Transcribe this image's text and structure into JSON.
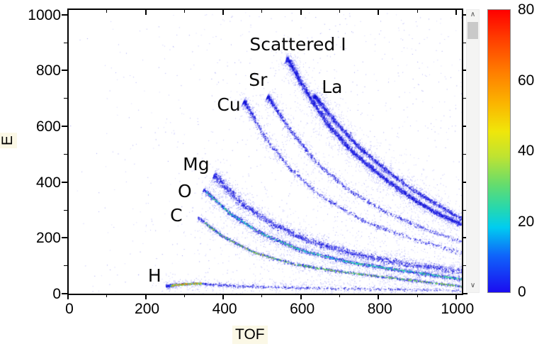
{
  "chart_data": {
    "type": "scatter",
    "title": "",
    "xlabel": "TOF",
    "ylabel": "E",
    "xlim": [
      0,
      1015
    ],
    "ylim": [
      0,
      1020
    ],
    "grid": false,
    "x_major_ticks": [
      0,
      200,
      400,
      600,
      800,
      1000
    ],
    "x_minor_ticks": [
      100,
      300,
      500,
      700,
      900
    ],
    "y_major_ticks": [
      0,
      200,
      400,
      600,
      800,
      1000
    ],
    "y_minor_ticks": [
      100,
      300,
      500,
      700,
      900
    ],
    "axis_color": "#000000",
    "annotations": [
      {
        "label": "Scattered I",
        "t": 468,
        "e": 926
      },
      {
        "label": "Sr",
        "t": 466,
        "e": 799
      },
      {
        "label": "Cu",
        "t": 384,
        "e": 710
      },
      {
        "label": "La",
        "t": 654,
        "e": 773
      },
      {
        "label": "Mg",
        "t": 296,
        "e": 496
      },
      {
        "label": "O",
        "t": 283,
        "e": 399
      },
      {
        "label": "C",
        "t": 263,
        "e": 313
      },
      {
        "label": "H",
        "t": 206,
        "e": 97
      }
    ],
    "series": [
      {
        "name": "H",
        "anchors": [
          [
            255,
            28
          ],
          [
            285,
            34
          ],
          [
            330,
            38
          ],
          [
            420,
            29
          ],
          [
            560,
            23
          ],
          [
            760,
            18
          ],
          [
            1015,
            13
          ]
        ],
        "t_range": [
          252,
          1015
        ],
        "bias": 2.0,
        "ridge_n": 700,
        "ridge_sigma": 1.0,
        "diffuse_n": 420,
        "diffuse_sigma": 2.8,
        "spray_n": 160,
        "spray_sigma": 9,
        "core": {
          "n": 270,
          "sigma": 0.6,
          "t_range": [
            262,
            345
          ],
          "colors": [
            "#5ad23c",
            "#d2dc1e",
            "#f0a028",
            "#e65a14",
            "#28c8c8"
          ]
        }
      },
      {
        "name": "C",
        "anchors": [
          [
            336,
            272
          ],
          [
            400,
            205
          ],
          [
            480,
            148
          ],
          [
            580,
            107
          ],
          [
            700,
            80
          ],
          [
            850,
            55
          ],
          [
            1015,
            27
          ]
        ],
        "t_range": [
          334,
          1015
        ],
        "bias": 1.2,
        "ridge_n": 1000,
        "ridge_sigma": 1.0,
        "diffuse_n": 620,
        "diffuse_sigma": 3.0,
        "spray_n": 260,
        "spray_sigma": 12,
        "core": {
          "n": 430,
          "sigma": 0.55,
          "t_range": [
            350,
            1015
          ],
          "colors": [
            "#3cc850",
            "#78d23c",
            "#b4dc28",
            "#2ad0a0"
          ]
        }
      },
      {
        "name": "O",
        "anchors": [
          [
            350,
            372
          ],
          [
            420,
            285
          ],
          [
            500,
            215
          ],
          [
            600,
            157
          ],
          [
            720,
            115
          ],
          [
            860,
            84
          ],
          [
            1015,
            53
          ]
        ],
        "t_range": [
          348,
          1015
        ],
        "bias": 1.2,
        "ridge_n": 1500,
        "ridge_sigma": 1.4,
        "diffuse_n": 1100,
        "diffuse_sigma": 4.5,
        "spray_n": 360,
        "spray_sigma": 14,
        "core": {
          "n": 540,
          "sigma": 0.6,
          "t_range": [
            356,
            1015
          ],
          "colors": [
            "#00c8f0",
            "#14dcd2",
            "#3cd796",
            "#64e150"
          ]
        }
      },
      {
        "name": "Mg",
        "anchors": [
          [
            378,
            425
          ],
          [
            440,
            330
          ],
          [
            520,
            255
          ],
          [
            620,
            190
          ],
          [
            740,
            142
          ],
          [
            880,
            105
          ],
          [
            1015,
            82
          ]
        ],
        "t_range": [
          375,
          1015
        ],
        "bias": 1.35,
        "ridge_n": 1700,
        "ridge_sigma": 2.2,
        "diffuse_n": 1400,
        "diffuse_sigma": 5.5,
        "spray_n": 420,
        "spray_sigma": 16,
        "core": null
      },
      {
        "name": "Cu",
        "anchors": [
          [
            455,
            688
          ],
          [
            505,
            565
          ],
          [
            570,
            452
          ],
          [
            650,
            352
          ],
          [
            760,
            262
          ],
          [
            890,
            196
          ],
          [
            1015,
            148
          ]
        ],
        "t_range": [
          452,
          1015
        ],
        "bias": 2.4,
        "ridge_n": 850,
        "ridge_sigma": 1.3,
        "diffuse_n": 650,
        "diffuse_sigma": 4.0,
        "spray_n": 210,
        "spray_sigma": 10,
        "core": null
      },
      {
        "name": "Sr",
        "anchors": [
          [
            516,
            706
          ],
          [
            570,
            590
          ],
          [
            640,
            470
          ],
          [
            720,
            375
          ],
          [
            820,
            292
          ],
          [
            920,
            233
          ],
          [
            1015,
            186
          ]
        ],
        "t_range": [
          513,
          1015
        ],
        "bias": 2.2,
        "ridge_n": 950,
        "ridge_sigma": 1.3,
        "diffuse_n": 700,
        "diffuse_sigma": 4.0,
        "spray_n": 230,
        "spray_sigma": 10,
        "core": null
      },
      {
        "name": "Scattered I",
        "anchors": [
          [
            566,
            842
          ],
          [
            615,
            722
          ],
          [
            668,
            610
          ],
          [
            730,
            512
          ],
          [
            810,
            418
          ],
          [
            900,
            330
          ],
          [
            955,
            286
          ],
          [
            1015,
            248
          ]
        ],
        "t_range": [
          562,
          1015
        ],
        "bias": 1.35,
        "ridge_n": 2700,
        "ridge_sigma": 1.5,
        "diffuse_n": 2000,
        "diffuse_sigma": 4.5,
        "spray_n": 700,
        "spray_sigma": 13,
        "core": null
      },
      {
        "name": "La",
        "anchors": [
          [
            636,
            708
          ],
          [
            688,
            618
          ],
          [
            745,
            532
          ],
          [
            815,
            448
          ],
          [
            900,
            362
          ],
          [
            1015,
            268
          ]
        ],
        "t_range": [
          632,
          1015
        ],
        "bias": 1.5,
        "ridge_n": 1500,
        "ridge_sigma": 1.4,
        "diffuse_n": 1100,
        "diffuse_sigma": 4.0,
        "spray_n": 420,
        "spray_sigma": 11,
        "core": null
      }
    ],
    "background_noise": {
      "n": 1250,
      "low_band": {
        "n": 280,
        "t_range": [
          260,
          1015
        ],
        "e_range": [
          2,
          55
        ]
      }
    },
    "point_colors": {
      "ridge": [
        "#1414dc",
        "#2323e6",
        "#3232f0",
        "#0a0ac8"
      ],
      "diffuse": [
        "#5a5af5",
        "#7878fa",
        "#4646e6"
      ],
      "spray": [
        "#8c8cff",
        "#aaaaff",
        "#6666f0"
      ],
      "noise": [
        "#9696ff",
        "#7474f5",
        "#5454e8",
        "#b4b4ff"
      ]
    },
    "colorbar": {
      "min": 0,
      "max": 80,
      "tick_labels": [
        "80",
        "60",
        "40",
        "20",
        "0"
      ],
      "tick_values": [
        80,
        60,
        40,
        20,
        0
      ],
      "stops_top_to_bottom": [
        [
          0.0,
          "#ff0000"
        ],
        [
          0.1,
          "#ff3c00"
        ],
        [
          0.22,
          "#ff7d00"
        ],
        [
          0.33,
          "#fbb400"
        ],
        [
          0.43,
          "#f0e60a"
        ],
        [
          0.52,
          "#bee332"
        ],
        [
          0.62,
          "#64dc6e"
        ],
        [
          0.7,
          "#28d8ac"
        ],
        [
          0.77,
          "#00cdf0"
        ],
        [
          0.87,
          "#0f64fa"
        ],
        [
          1.0,
          "#1b0cf0"
        ]
      ]
    }
  },
  "icons": {
    "scroll_up_glyph": "∧",
    "scroll_down_glyph": "∨"
  }
}
